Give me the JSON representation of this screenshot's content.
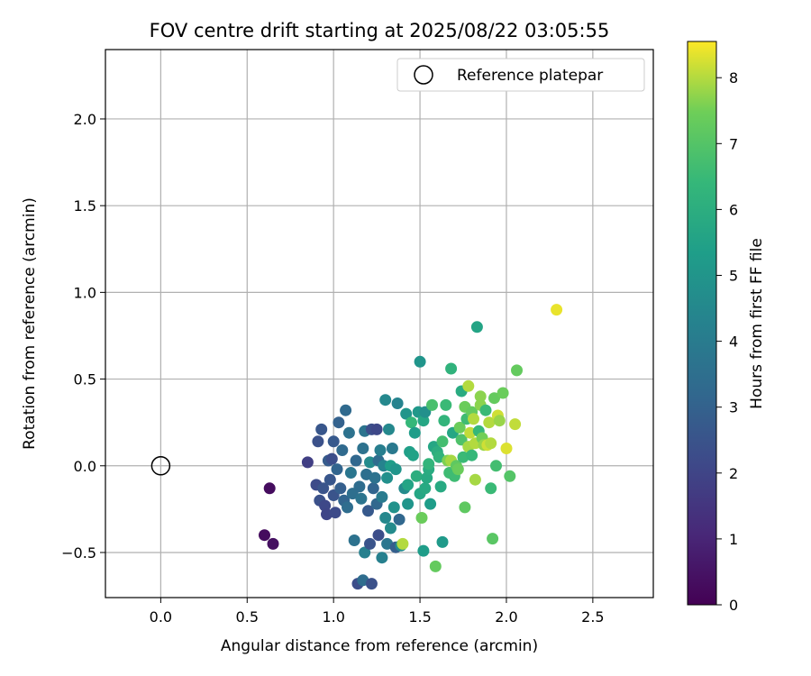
{
  "chart_data": {
    "type": "scatter",
    "title": "FOV centre drift starting at 2025/08/22 03:05:55",
    "xlabel": "Angular distance from reference (arcmin)",
    "ylabel": "Rotation from reference (arcmin)",
    "xlim": [
      -0.32,
      2.85
    ],
    "ylim": [
      -0.76,
      2.4
    ],
    "xticks": [
      "0.0",
      "0.5",
      "1.0",
      "1.5",
      "2.0",
      "2.5"
    ],
    "yticks": [
      "−0.5",
      "0.0",
      "0.5",
      "1.0",
      "1.5",
      "2.0"
    ],
    "xtick_values": [
      0.0,
      0.5,
      1.0,
      1.5,
      2.0,
      2.5
    ],
    "ytick_values": [
      -0.5,
      0.0,
      0.5,
      1.0,
      1.5,
      2.0
    ],
    "grid": true,
    "legend": {
      "placement": "top-right",
      "label": "Reference platepar"
    },
    "reference_point": {
      "x": 0.0,
      "y": 0.0
    },
    "colorbar": {
      "label": "Hours from first FF file",
      "min": 0,
      "max": 8.55,
      "ticks": [
        "0",
        "1",
        "2",
        "3",
        "4",
        "5",
        "6",
        "7",
        "8"
      ],
      "tick_values": [
        0,
        1,
        2,
        3,
        4,
        5,
        6,
        7,
        8
      ],
      "colormap": "viridis"
    },
    "points": [
      [
        0.6,
        -0.4,
        0.3
      ],
      [
        0.63,
        -0.13,
        0.3
      ],
      [
        0.65,
        -0.45,
        0.4
      ],
      [
        0.85,
        0.02,
        1.8
      ],
      [
        0.9,
        -0.11,
        2.2
      ],
      [
        0.91,
        0.14,
        2.4
      ],
      [
        0.93,
        0.21,
        2.6
      ],
      [
        0.92,
        -0.2,
        2.4
      ],
      [
        0.95,
        -0.23,
        2.1
      ],
      [
        0.94,
        -0.13,
        2.5
      ],
      [
        0.96,
        -0.28,
        2.0
      ],
      [
        0.97,
        0.03,
        2.8
      ],
      [
        0.98,
        -0.08,
        2.6
      ],
      [
        0.99,
        0.04,
        2.3
      ],
      [
        1.0,
        -0.17,
        2.5
      ],
      [
        1.0,
        0.14,
        2.7
      ],
      [
        1.01,
        -0.27,
        2.2
      ],
      [
        1.02,
        -0.02,
        3.1
      ],
      [
        1.03,
        0.25,
        3.0
      ],
      [
        1.04,
        -0.13,
        2.9
      ],
      [
        1.05,
        0.09,
        3.3
      ],
      [
        1.06,
        -0.2,
        3.1
      ],
      [
        1.07,
        0.32,
        3.3
      ],
      [
        1.08,
        -0.24,
        3.4
      ],
      [
        1.09,
        0.19,
        3.6
      ],
      [
        1.1,
        -0.04,
        3.8
      ],
      [
        1.11,
        -0.16,
        3.5
      ],
      [
        1.12,
        -0.43,
        3.6
      ],
      [
        1.13,
        0.03,
        3.2
      ],
      [
        1.14,
        -0.68,
        2.3
      ],
      [
        1.15,
        -0.12,
        3.4
      ],
      [
        1.16,
        -0.19,
        3.7
      ],
      [
        1.17,
        0.1,
        3.6
      ],
      [
        1.17,
        -0.66,
        3.4
      ],
      [
        1.18,
        0.2,
        3.7
      ],
      [
        1.18,
        -0.5,
        4.2
      ],
      [
        1.19,
        -0.05,
        3.5
      ],
      [
        1.2,
        -0.26,
        2.7
      ],
      [
        1.21,
        0.02,
        4.6
      ],
      [
        1.21,
        -0.45,
        2.5
      ],
      [
        1.22,
        -0.68,
        2.4
      ],
      [
        1.22,
        0.21,
        2.3
      ],
      [
        1.23,
        -0.13,
        3.1
      ],
      [
        1.24,
        -0.07,
        3.6
      ],
      [
        1.25,
        0.21,
        2.1
      ],
      [
        1.25,
        -0.22,
        3.2
      ],
      [
        1.26,
        0.03,
        3.4
      ],
      [
        1.26,
        -0.4,
        2.3
      ],
      [
        1.27,
        0.09,
        4.1
      ],
      [
        1.28,
        -0.18,
        4.0
      ],
      [
        1.28,
        -0.53,
        4.2
      ],
      [
        1.29,
        0.0,
        4.3
      ],
      [
        1.3,
        -0.3,
        4.5
      ],
      [
        1.3,
        0.38,
        4.5
      ],
      [
        1.31,
        -0.07,
        4.8
      ],
      [
        1.31,
        -0.45,
        3.8
      ],
      [
        1.32,
        0.21,
        4.5
      ],
      [
        1.33,
        -0.36,
        4.6
      ],
      [
        1.33,
        0.0,
        5.3
      ],
      [
        1.34,
        0.1,
        3.9
      ],
      [
        1.35,
        -0.24,
        4.9
      ],
      [
        1.36,
        -0.02,
        5.0
      ],
      [
        1.36,
        -0.47,
        2.9
      ],
      [
        1.37,
        0.36,
        4.3
      ],
      [
        1.38,
        -0.31,
        3.2
      ],
      [
        1.39,
        -0.46,
        4.7
      ],
      [
        1.4,
        -0.45,
        8.0
      ],
      [
        1.41,
        -0.13,
        4.6
      ],
      [
        1.42,
        0.3,
        5.0
      ],
      [
        1.43,
        -0.11,
        5.6
      ],
      [
        1.43,
        -0.22,
        5.0
      ],
      [
        1.44,
        0.08,
        5.4
      ],
      [
        1.45,
        0.25,
        6.4
      ],
      [
        1.46,
        0.06,
        5.5
      ],
      [
        1.47,
        0.19,
        5.3
      ],
      [
        1.48,
        -0.06,
        6.0
      ],
      [
        1.49,
        0.31,
        5.1
      ],
      [
        1.5,
        0.6,
        5.0
      ],
      [
        1.5,
        -0.16,
        5.7
      ],
      [
        1.51,
        -0.3,
        7.4
      ],
      [
        1.52,
        0.26,
        5.7
      ],
      [
        1.52,
        -0.49,
        5.3
      ],
      [
        1.53,
        0.31,
        4.8
      ],
      [
        1.53,
        -0.13,
        5.8
      ],
      [
        1.54,
        -0.07,
        5.8
      ],
      [
        1.55,
        -0.02,
        5.9
      ],
      [
        1.55,
        0.01,
        6.3
      ],
      [
        1.56,
        -0.22,
        5.3
      ],
      [
        1.57,
        0.35,
        6.8
      ],
      [
        1.58,
        0.11,
        5.7
      ],
      [
        1.59,
        -0.58,
        7.3
      ],
      [
        1.6,
        0.08,
        6.0
      ],
      [
        1.61,
        0.05,
        6.2
      ],
      [
        1.62,
        -0.12,
        5.8
      ],
      [
        1.63,
        0.14,
        6.7
      ],
      [
        1.63,
        -0.44,
        5.2
      ],
      [
        1.64,
        0.26,
        6.3
      ],
      [
        1.65,
        0.35,
        6.5
      ],
      [
        1.66,
        0.03,
        7.6
      ],
      [
        1.67,
        -0.04,
        6.6
      ],
      [
        1.68,
        0.56,
        6.2
      ],
      [
        1.68,
        0.03,
        7.9
      ],
      [
        1.69,
        0.19,
        5.7
      ],
      [
        1.7,
        -0.06,
        6.6
      ],
      [
        1.71,
        0.0,
        7.2
      ],
      [
        1.72,
        -0.02,
        7.4
      ],
      [
        1.73,
        0.22,
        7.4
      ],
      [
        1.74,
        0.43,
        5.9
      ],
      [
        1.74,
        0.15,
        6.9
      ],
      [
        1.75,
        0.05,
        6.5
      ],
      [
        1.76,
        -0.24,
        7.2
      ],
      [
        1.76,
        0.34,
        7.4
      ],
      [
        1.77,
        0.27,
        6.6
      ],
      [
        1.78,
        0.46,
        8.0
      ],
      [
        1.78,
        0.11,
        7.9
      ],
      [
        1.79,
        0.19,
        8.1
      ],
      [
        1.8,
        0.06,
        6.4
      ],
      [
        1.8,
        0.31,
        7.3
      ],
      [
        1.81,
        0.27,
        8.0
      ],
      [
        1.82,
        -0.08,
        7.9
      ],
      [
        1.82,
        0.13,
        8.0
      ],
      [
        1.83,
        0.8,
        5.6
      ],
      [
        1.84,
        0.2,
        6.4
      ],
      [
        1.85,
        0.4,
        7.7
      ],
      [
        1.85,
        0.35,
        7.7
      ],
      [
        1.86,
        0.16,
        7.5
      ],
      [
        1.87,
        0.12,
        7.8
      ],
      [
        1.88,
        0.32,
        6.5
      ],
      [
        1.89,
        0.12,
        8.2
      ],
      [
        1.9,
        0.25,
        8.0
      ],
      [
        1.91,
        0.13,
        8.0
      ],
      [
        1.91,
        -0.13,
        6.5
      ],
      [
        1.92,
        -0.42,
        7.1
      ],
      [
        1.93,
        0.39,
        7.3
      ],
      [
        1.94,
        0.0,
        6.7
      ],
      [
        1.95,
        0.29,
        8.2
      ],
      [
        1.96,
        0.26,
        7.8
      ],
      [
        1.98,
        0.42,
        7.4
      ],
      [
        2.0,
        0.1,
        8.3
      ],
      [
        2.02,
        -0.06,
        7.0
      ],
      [
        2.05,
        0.24,
        8.1
      ],
      [
        2.06,
        0.55,
        7.3
      ],
      [
        2.29,
        0.9,
        8.4
      ]
    ]
  }
}
